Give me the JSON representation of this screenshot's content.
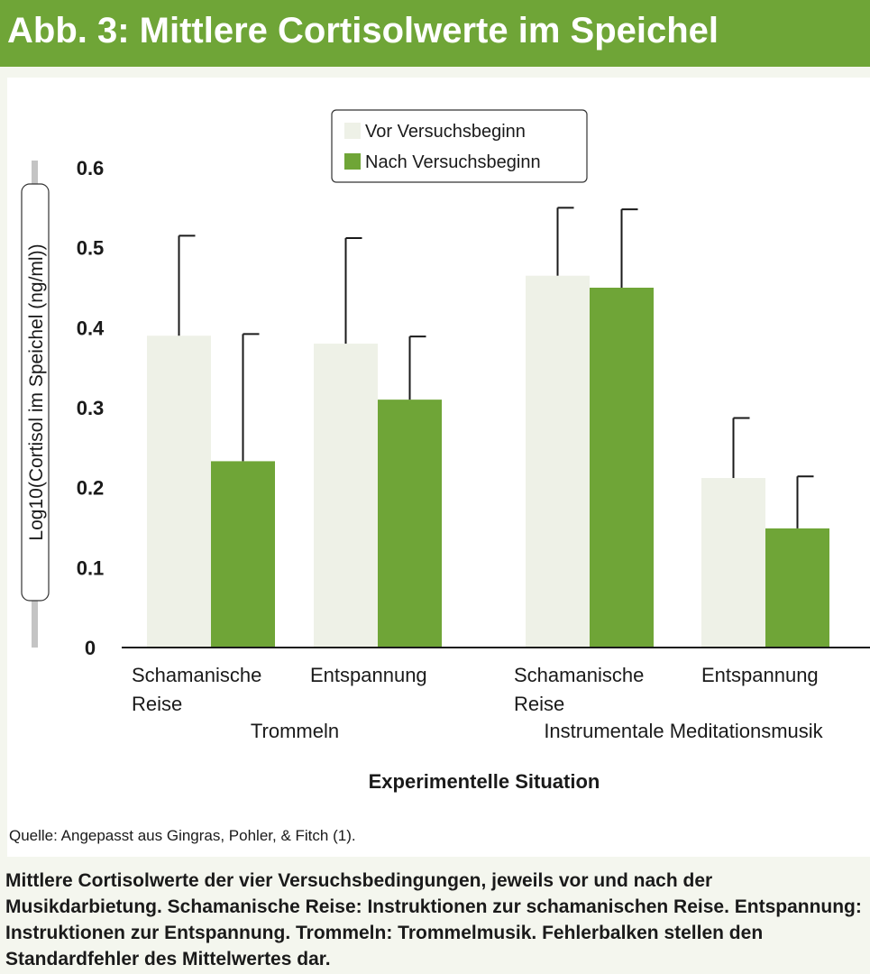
{
  "header": {
    "title": "Abb. 3: Mittlere Cortisolwerte im Speichel"
  },
  "chart_data": {
    "type": "bar",
    "ylabel": "Log10(Cortisol im Speichel (ng/ml))",
    "xlabel": "Experimentelle Situation",
    "ylim": [
      0,
      0.6
    ],
    "yticks": [
      "0",
      "0.1",
      "0.2",
      "0.3",
      "0.4",
      "0.5",
      "0.6"
    ],
    "legend_position": "top-center",
    "groups": [
      "Trommeln",
      "Instrumentale Meditationsmusik"
    ],
    "categories": [
      {
        "line1": "Schamanische",
        "line2": "Reise"
      },
      {
        "line1": "Entspannung",
        "line2": ""
      },
      {
        "line1": "Schamanische",
        "line2": "Reise"
      },
      {
        "line1": "Entspannung",
        "line2": ""
      }
    ],
    "series": [
      {
        "name": "Vor Versuchsbeginn",
        "color": "#eef1e7",
        "values": [
          0.39,
          0.38,
          0.465,
          0.212
        ],
        "errors": [
          0.125,
          0.132,
          0.085,
          0.075
        ]
      },
      {
        "name": "Nach Versuchsbeginn",
        "color": "#6fa537",
        "values": [
          0.233,
          0.31,
          0.45,
          0.149
        ],
        "errors": [
          0.159,
          0.079,
          0.098,
          0.065
        ]
      }
    ],
    "source": "Quelle: Angepasst aus Gingras, Pohler, & Fitch (1)."
  },
  "caption": "Mittlere Cortisolwerte der vier Versuchsbedingungen, jeweils vor und nach der Musikdarbietung. Schamanische Reise: Instruktionen zur schamanischen Reise. Entspannung: Instruktionen zur Entspannung. Trommeln: Trommelmusik. Fehlerbalken stellen den Standardfehler des Mittelwertes dar."
}
